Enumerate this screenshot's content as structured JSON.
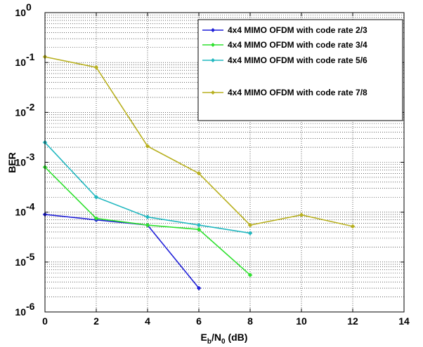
{
  "chart_data": {
    "type": "line",
    "title": "",
    "xlabel": {
      "main": "E",
      "sub1": "b",
      "mid": "/N",
      "sub2": "0",
      "tail": " (dB)"
    },
    "ylabel": "BER",
    "xlim": [
      0,
      14
    ],
    "ylim": [
      1e-06,
      1
    ],
    "yscale": "log",
    "grid": true,
    "legend_position": "top-right",
    "x_ticks": [
      "0",
      "2",
      "4",
      "6",
      "8",
      "10",
      "12",
      "14"
    ],
    "y_ticks": [
      {
        "base": "10",
        "exp": "0"
      },
      {
        "base": "10",
        "exp": "-1"
      },
      {
        "base": "10",
        "exp": "-2"
      },
      {
        "base": "10",
        "exp": "-3"
      },
      {
        "base": "10",
        "exp": "-4"
      },
      {
        "base": "10",
        "exp": "-5"
      },
      {
        "base": "10",
        "exp": "-6"
      }
    ],
    "series": [
      {
        "name": "4x4 MIMO OFDM with code rate 2/3",
        "color": "#1f1fd8",
        "x": [
          0,
          2,
          4,
          6
        ],
        "y": [
          9e-05,
          7e-05,
          5.5e-05,
          3e-06
        ]
      },
      {
        "name": "4x4 MIMO OFDM with code rate 3/4",
        "color": "#2ee02e",
        "x": [
          0,
          2,
          4,
          6,
          8
        ],
        "y": [
          0.0008,
          7.5e-05,
          5.5e-05,
          4.5e-05,
          5.5e-06
        ]
      },
      {
        "name": "4x4 MIMO OFDM with code rate 5/6",
        "color": "#22b8c0",
        "x": [
          0,
          2,
          4,
          6,
          8
        ],
        "y": [
          0.0025,
          0.0002,
          8e-05,
          5.5e-05,
          3.8e-05
        ]
      },
      {
        "name": "4x4 MIMO OFDM with code rate 7/8",
        "color": "#b8b020",
        "x": [
          0,
          2,
          4,
          6,
          8,
          10,
          12
        ],
        "y": [
          0.13,
          0.08,
          0.0021,
          0.0006,
          5.5e-05,
          8.8e-05,
          5.2e-05
        ]
      }
    ]
  }
}
